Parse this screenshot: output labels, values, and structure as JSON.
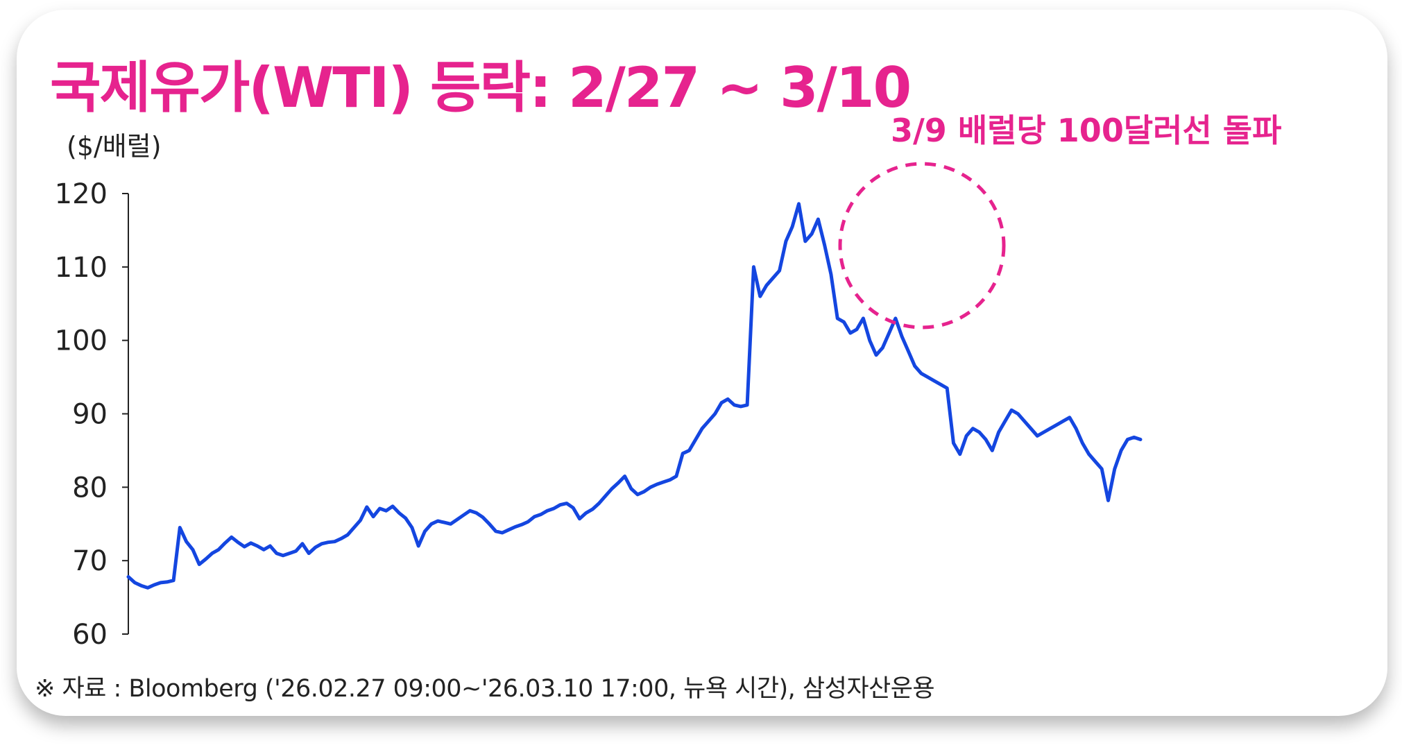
{
  "title": "국제유가(WTI) 등락: 2/27 ~ 3/10",
  "footnote": "※ 자료 : Bloomberg ('26.02.27 09:00~'26.03.10 17:00, 뉴욕 시간), 삼성자산운용",
  "colors": {
    "accent": "#e6238e",
    "series": "#1446e0",
    "axis": "#222222"
  },
  "chart_data": {
    "type": "line",
    "title": "국제유가(WTI) 등락: 2/27 ~ 3/10",
    "ylabel": "($/배럴)",
    "xlabel": "",
    "ylim": [
      60,
      120
    ],
    "yticks": [
      60,
      70,
      80,
      90,
      100,
      110,
      120
    ],
    "yticklabels": [
      "60",
      "70",
      "80",
      "90",
      "100",
      "110",
      "120"
    ],
    "x_range": [
      "2026-02-27 09:00",
      "2026-03-10 17:00"
    ],
    "grid": false,
    "legend": "none",
    "annotation": {
      "label": "3/9 배럴당 100달러선 돌파",
      "style": "dashed-circle"
    },
    "series": [
      {
        "values": [
          67.8,
          67.0,
          66.6,
          66.3,
          66.7,
          67.0,
          67.1,
          67.3,
          74.5,
          72.6,
          71.5,
          69.5,
          70.2,
          71.0,
          71.5,
          72.4,
          73.2,
          72.5,
          71.9,
          72.4,
          72.0,
          71.5,
          72.0,
          71.0,
          70.7,
          71.0,
          71.3,
          72.3,
          71.0,
          71.8,
          72.3,
          72.5,
          72.6,
          73.0,
          73.5,
          74.5,
          75.5,
          77.3,
          76.0,
          77.1,
          76.8,
          77.4,
          76.5,
          75.8,
          74.5,
          72.0,
          74.0,
          75.0,
          75.4,
          75.2,
          75.0,
          75.6,
          76.2,
          76.8,
          76.5,
          75.9,
          75.0,
          74.0,
          73.8,
          74.2,
          74.6,
          74.9,
          75.3,
          76.0,
          76.3,
          76.8,
          77.1,
          77.6,
          77.8,
          77.2,
          75.7,
          76.5,
          77.0,
          77.8,
          78.8,
          79.8,
          80.6,
          81.5,
          79.8,
          79.0,
          79.4,
          80.0,
          80.4,
          80.7,
          81.0,
          81.5,
          84.6,
          85.0,
          86.5,
          88.0,
          89.0,
          90.0,
          91.5,
          92.0,
          91.2,
          91.0,
          91.2,
          110.0,
          106.0,
          107.5,
          108.5,
          109.5,
          113.5,
          115.5,
          118.6,
          113.5,
          114.5,
          116.5,
          113.0,
          109.0,
          103.0,
          102.5,
          101.0,
          101.5,
          103.0,
          100.0,
          98.0,
          99.0,
          101.0,
          103.0,
          100.5,
          98.5,
          96.5,
          95.5,
          95.0,
          94.5,
          94.0,
          93.5,
          86.0,
          84.5,
          87.0,
          88.0,
          87.5,
          86.5,
          85.0,
          87.5,
          89.0,
          90.5,
          90.0,
          89.0,
          88.0,
          87.0,
          87.5,
          88.0,
          88.5,
          89.0,
          89.5,
          88.0,
          86.0,
          84.5,
          83.5,
          82.5,
          78.2,
          82.5,
          85.0,
          86.5,
          86.8,
          86.5
        ]
      }
    ]
  }
}
